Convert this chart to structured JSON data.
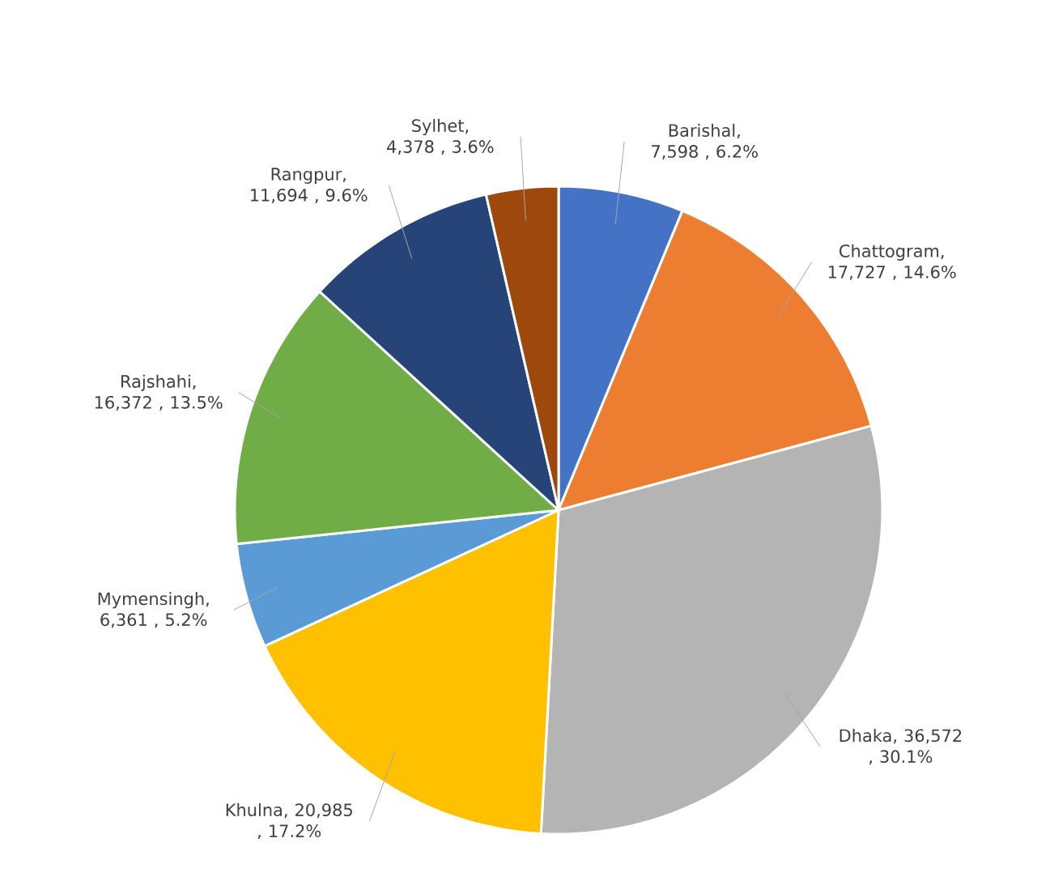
{
  "chart_data": {
    "type": "pie",
    "categories": [
      "Barishal",
      "Chattogram",
      "Dhaka",
      "Khulna",
      "Mymensingh",
      "Rajshahi",
      "Rangpur",
      "Sylhet"
    ],
    "values": [
      7598,
      17727,
      36572,
      20985,
      6361,
      16372,
      11694,
      4378
    ],
    "colors": [
      "#4472c4",
      "#ed7d31",
      "#b4b4b4",
      "#ffc000",
      "#5b9bd5",
      "#70ad47",
      "#264478",
      "#9e480e"
    ],
    "value_labels": [
      ", 7,598 , 6.2%",
      ", 17,727 , 14.6%",
      ", 36,572 , 30.1%",
      ", 20,985 , 17.2%",
      ", 6,361 , 5.2%",
      ", 16,372 , 13.5%",
      ", 11,694 , 9.6%",
      ", 4,378 , 3.6%"
    ]
  }
}
